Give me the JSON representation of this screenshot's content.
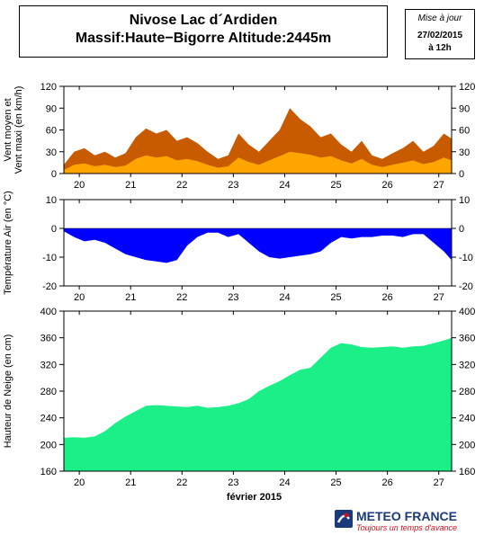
{
  "header": {
    "title_line1": "Nivose Lac d´Ardiden",
    "title_line2": "Massif:Haute−Bigorre Altitude:2445m"
  },
  "date_box": {
    "label": "Mise à jour",
    "date": "27/02/2015",
    "time": "à 12h"
  },
  "footer": {
    "brand": "METEO FRANCE",
    "slogan": "Toujours un temps d'avance",
    "month_label": "février 2015"
  },
  "chart_data": [
    {
      "type": "area",
      "ylabel_lines": [
        "Vent moyen et",
        "Vent maxi (en km/h)"
      ],
      "ylim": [
        0,
        120
      ],
      "yticks": [
        0,
        30,
        60,
        90,
        120
      ],
      "xlim": [
        19.7,
        27.25
      ],
      "xticks": [
        20,
        21,
        22,
        23,
        24,
        25,
        26,
        27
      ],
      "xtick_labels": [
        "20",
        "21",
        "22",
        "23",
        "24",
        "25",
        "26",
        "27"
      ],
      "colors": {
        "max": "#c85a00",
        "mean": "#ffa500"
      },
      "series": [
        {
          "key": "max",
          "x": [
            19.7,
            19.9,
            20.1,
            20.3,
            20.5,
            20.7,
            20.9,
            21.1,
            21.3,
            21.5,
            21.7,
            21.9,
            22.1,
            22.3,
            22.5,
            22.7,
            22.9,
            23.1,
            23.3,
            23.5,
            23.7,
            23.9,
            24.1,
            24.3,
            24.5,
            24.7,
            24.9,
            25.1,
            25.3,
            25.5,
            25.7,
            25.9,
            26.1,
            26.3,
            26.5,
            26.7,
            26.9,
            27.1,
            27.25
          ],
          "values": [
            12,
            30,
            35,
            25,
            30,
            22,
            28,
            50,
            62,
            55,
            60,
            45,
            50,
            42,
            30,
            20,
            25,
            55,
            40,
            30,
            45,
            60,
            90,
            75,
            65,
            50,
            55,
            40,
            30,
            45,
            25,
            20,
            28,
            35,
            45,
            30,
            38,
            55,
            48
          ]
        },
        {
          "key": "mean",
          "x": [
            19.7,
            19.9,
            20.1,
            20.3,
            20.5,
            20.7,
            20.9,
            21.1,
            21.3,
            21.5,
            21.7,
            21.9,
            22.1,
            22.3,
            22.5,
            22.7,
            22.9,
            23.1,
            23.3,
            23.5,
            23.7,
            23.9,
            24.1,
            24.3,
            24.5,
            24.7,
            24.9,
            25.1,
            25.3,
            25.5,
            25.7,
            25.9,
            26.1,
            26.3,
            26.5,
            26.7,
            26.9,
            27.1,
            27.25
          ],
          "values": [
            5,
            12,
            14,
            10,
            12,
            9,
            11,
            20,
            25,
            22,
            24,
            18,
            20,
            17,
            12,
            8,
            10,
            22,
            16,
            12,
            18,
            24,
            30,
            28,
            26,
            22,
            24,
            18,
            14,
            20,
            12,
            9,
            12,
            15,
            18,
            13,
            16,
            22,
            18
          ]
        }
      ]
    },
    {
      "type": "area",
      "ylabel_lines": [
        "Température Air (en °C)"
      ],
      "ylim": [
        -20,
        10
      ],
      "yticks": [
        -20,
        -10,
        0,
        10
      ],
      "xlim": [
        19.7,
        27.25
      ],
      "xticks": [
        20,
        21,
        22,
        23,
        24,
        25,
        26,
        27
      ],
      "xtick_labels": [
        "20",
        "21",
        "22",
        "23",
        "24",
        "25",
        "26",
        "27"
      ],
      "colors": {
        "fill": "#0000ff"
      },
      "series": [
        {
          "key": "temp",
          "x": [
            19.7,
            19.9,
            20.1,
            20.3,
            20.5,
            20.7,
            20.9,
            21.1,
            21.3,
            21.5,
            21.7,
            21.9,
            22.1,
            22.3,
            22.5,
            22.7,
            22.9,
            23.1,
            23.3,
            23.5,
            23.7,
            23.9,
            24.1,
            24.3,
            24.5,
            24.7,
            24.9,
            25.1,
            25.3,
            25.5,
            25.7,
            25.9,
            26.1,
            26.3,
            26.5,
            26.7,
            26.9,
            27.1,
            27.25
          ],
          "values": [
            -1,
            -3,
            -4.5,
            -4,
            -5,
            -7,
            -9,
            -10,
            -11,
            -11.5,
            -12,
            -11,
            -6,
            -3,
            -1.5,
            -1.5,
            -3,
            -2,
            -5,
            -8,
            -10,
            -10.5,
            -10,
            -9.5,
            -9,
            -8,
            -5,
            -3,
            -3.5,
            -3,
            -3,
            -2.5,
            -2.5,
            -3,
            -2,
            -2,
            -5,
            -8,
            -11
          ]
        }
      ]
    },
    {
      "type": "area",
      "ylabel_lines": [
        "Hauteur de Neige (en cm)"
      ],
      "ylim": [
        160,
        400
      ],
      "yticks": [
        160,
        200,
        240,
        280,
        320,
        360,
        400
      ],
      "xlim": [
        19.7,
        27.25
      ],
      "xticks": [
        20,
        21,
        22,
        23,
        24,
        25,
        26,
        27
      ],
      "xtick_labels": [
        "20",
        "21",
        "22",
        "23",
        "24",
        "25",
        "26",
        "27"
      ],
      "colors": {
        "fill": "#1aef88"
      },
      "series": [
        {
          "key": "snow",
          "x": [
            19.7,
            19.9,
            20.1,
            20.3,
            20.5,
            20.7,
            20.9,
            21.1,
            21.3,
            21.5,
            21.7,
            21.9,
            22.1,
            22.3,
            22.5,
            22.7,
            22.9,
            23.1,
            23.3,
            23.5,
            23.7,
            23.9,
            24.1,
            24.3,
            24.5,
            24.7,
            24.9,
            25.1,
            25.3,
            25.5,
            25.7,
            25.9,
            26.1,
            26.3,
            26.5,
            26.7,
            26.9,
            27.1,
            27.25
          ],
          "values": [
            210,
            211,
            210,
            212,
            220,
            232,
            242,
            250,
            258,
            259,
            258,
            257,
            256,
            258,
            255,
            256,
            258,
            262,
            268,
            280,
            288,
            295,
            304,
            312,
            315,
            330,
            345,
            352,
            350,
            346,
            345,
            346,
            347,
            345,
            347,
            348,
            352,
            356,
            360
          ]
        }
      ]
    }
  ]
}
